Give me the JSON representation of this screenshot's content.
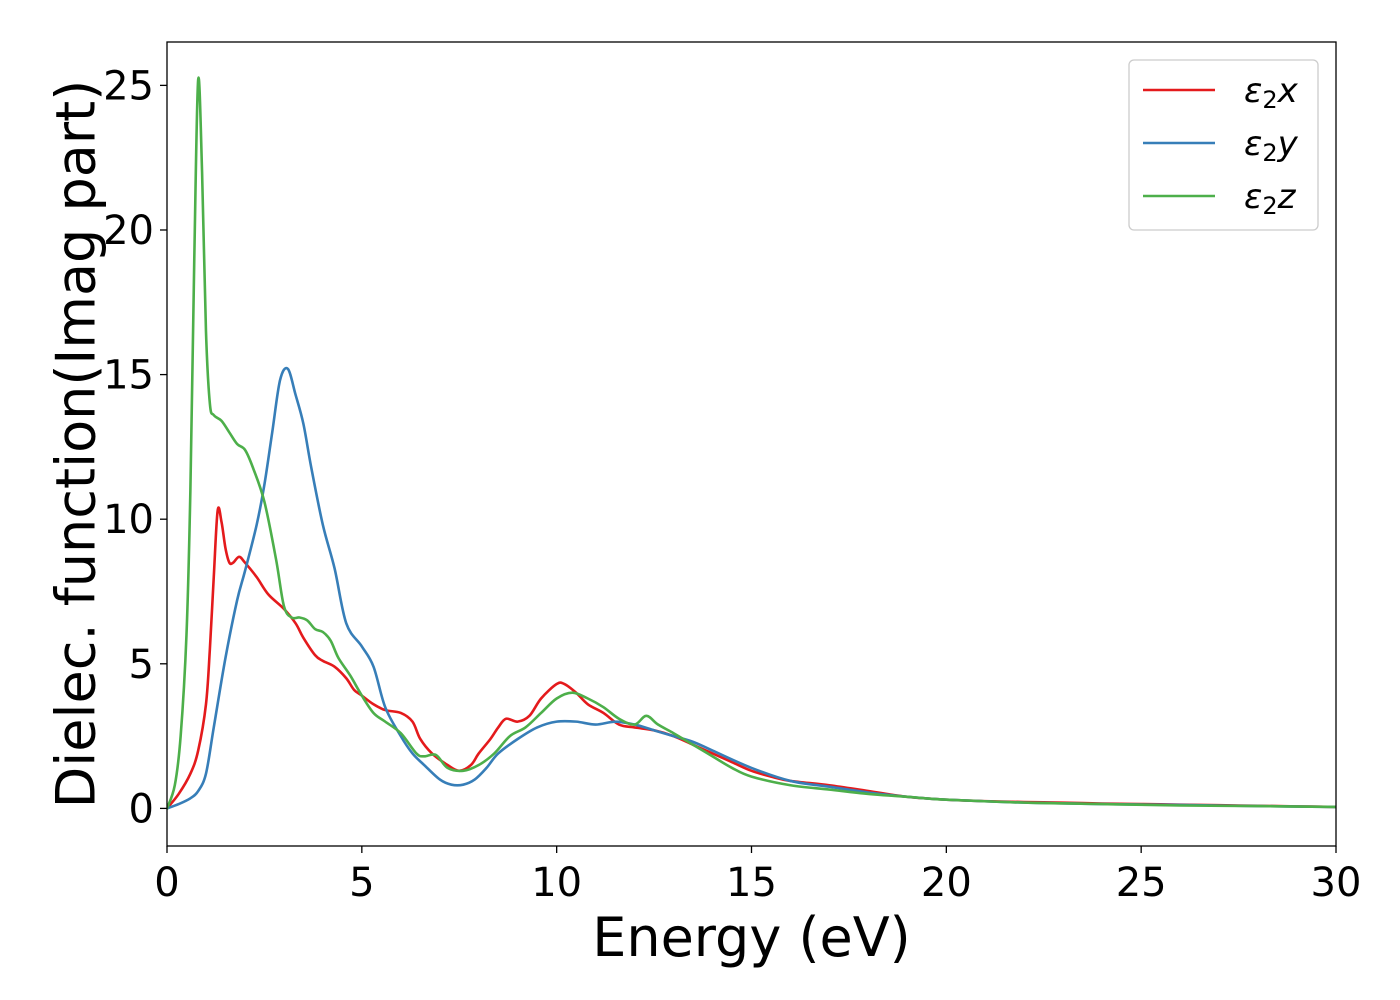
{
  "chart_data": {
    "type": "line",
    "title": "",
    "xlabel": "Energy (eV)",
    "ylabel": "Dielec. function(Imag part)",
    "xlim": [
      0,
      30
    ],
    "ylim": [
      -1.3,
      26.5
    ],
    "xticks": [
      0,
      5,
      10,
      15,
      20,
      25,
      30
    ],
    "yticks": [
      0,
      5,
      10,
      15,
      20,
      25
    ],
    "grid": false,
    "legend_position": "top-right",
    "series": [
      {
        "name": "ε₂x",
        "legend_base": "ε",
        "legend_sub": "2",
        "legend_suffix": "x",
        "color": "#e41a1c",
        "x": [
          0,
          0.3,
          0.6,
          0.8,
          1.0,
          1.1,
          1.2,
          1.3,
          1.4,
          1.5,
          1.6,
          1.7,
          1.85,
          2.0,
          2.3,
          2.6,
          3.0,
          3.3,
          3.5,
          3.8,
          4.0,
          4.3,
          4.6,
          4.8,
          5.0,
          5.3,
          5.6,
          6.0,
          6.3,
          6.5,
          6.8,
          7.2,
          7.5,
          7.8,
          8.0,
          8.3,
          8.5,
          8.7,
          9.0,
          9.3,
          9.6,
          10.0,
          10.2,
          10.5,
          10.8,
          11.2,
          11.6,
          12.0,
          12.5,
          13.0,
          13.5,
          14.0,
          14.5,
          15.0,
          15.5,
          16.0,
          17.0,
          18.0,
          19.0,
          20.0,
          21.0,
          22.0,
          23.0,
          24.0,
          25.0,
          26.0,
          27.0,
          28.0,
          29.0,
          30.0
        ],
        "y": [
          0,
          0.5,
          1.2,
          2.0,
          3.6,
          5.5,
          8.0,
          10.3,
          9.9,
          9.0,
          8.5,
          8.5,
          8.7,
          8.5,
          8.0,
          7.4,
          6.9,
          6.4,
          5.9,
          5.3,
          5.1,
          4.9,
          4.5,
          4.1,
          3.9,
          3.6,
          3.4,
          3.3,
          3.0,
          2.4,
          1.9,
          1.5,
          1.3,
          1.5,
          1.9,
          2.4,
          2.8,
          3.1,
          3.0,
          3.2,
          3.8,
          4.3,
          4.3,
          4.0,
          3.6,
          3.3,
          2.9,
          2.8,
          2.7,
          2.5,
          2.2,
          1.9,
          1.6,
          1.3,
          1.1,
          0.95,
          0.8,
          0.6,
          0.4,
          0.3,
          0.25,
          0.22,
          0.2,
          0.17,
          0.15,
          0.13,
          0.11,
          0.09,
          0.07,
          0.05
        ]
      },
      {
        "name": "ε₂y",
        "legend_base": "ε",
        "legend_sub": "2",
        "legend_suffix": "y",
        "color": "#377eb8",
        "x": [
          0,
          0.3,
          0.6,
          0.8,
          1.0,
          1.2,
          1.5,
          1.8,
          2.0,
          2.3,
          2.5,
          2.7,
          2.9,
          3.1,
          3.3,
          3.5,
          3.7,
          4.0,
          4.3,
          4.6,
          5.0,
          5.3,
          5.6,
          6.0,
          6.3,
          6.6,
          7.0,
          7.3,
          7.6,
          7.9,
          8.2,
          8.5,
          9.0,
          9.5,
          10.0,
          10.5,
          11.0,
          11.5,
          12.0,
          12.5,
          13.0,
          13.5,
          14.0,
          15.0,
          16.0,
          17.0,
          18.0,
          19.0,
          20.0,
          22.0,
          24.0,
          26.0,
          28.0,
          30.0
        ],
        "y": [
          0,
          0.15,
          0.35,
          0.6,
          1.2,
          2.8,
          5.2,
          7.2,
          8.2,
          9.8,
          11.2,
          13.0,
          14.8,
          15.2,
          14.3,
          13.3,
          11.8,
          9.8,
          8.3,
          6.4,
          5.6,
          4.9,
          3.5,
          2.5,
          1.9,
          1.5,
          1.0,
          0.82,
          0.82,
          1.0,
          1.4,
          1.9,
          2.4,
          2.8,
          3.0,
          3.0,
          2.9,
          3.0,
          2.9,
          2.7,
          2.5,
          2.3,
          2.0,
          1.4,
          0.95,
          0.75,
          0.55,
          0.4,
          0.3,
          0.2,
          0.15,
          0.12,
          0.08,
          0.05
        ]
      },
      {
        "name": "ε₂z",
        "legend_base": "ε",
        "legend_sub": "2",
        "legend_suffix": "z",
        "color": "#4daf4a",
        "x": [
          0,
          0.2,
          0.35,
          0.5,
          0.6,
          0.7,
          0.8,
          0.9,
          1.0,
          1.1,
          1.2,
          1.4,
          1.6,
          1.8,
          2.0,
          2.2,
          2.5,
          2.8,
          3.0,
          3.2,
          3.4,
          3.6,
          3.8,
          4.0,
          4.2,
          4.4,
          4.7,
          5.0,
          5.3,
          5.6,
          6.0,
          6.4,
          6.6,
          6.9,
          7.2,
          7.6,
          8.0,
          8.4,
          8.8,
          9.2,
          9.6,
          10.0,
          10.4,
          10.8,
          11.2,
          11.6,
          12.0,
          12.3,
          12.6,
          13.0,
          13.5,
          14.0,
          14.5,
          15.0,
          16.0,
          17.0,
          18.0,
          19.0,
          20.0,
          22.0,
          24.0,
          26.0,
          28.0,
          30.0
        ],
        "y": [
          0,
          0.8,
          2.5,
          6.0,
          11.0,
          19.0,
          25.2,
          22.0,
          16.5,
          14.0,
          13.6,
          13.4,
          13.0,
          12.6,
          12.4,
          11.8,
          10.6,
          8.6,
          7.0,
          6.6,
          6.6,
          6.5,
          6.2,
          6.1,
          5.8,
          5.2,
          4.6,
          3.9,
          3.3,
          3.0,
          2.6,
          1.9,
          1.8,
          1.85,
          1.4,
          1.3,
          1.5,
          1.9,
          2.5,
          2.8,
          3.3,
          3.8,
          4.0,
          3.8,
          3.5,
          3.1,
          2.9,
          3.2,
          2.9,
          2.6,
          2.2,
          1.8,
          1.4,
          1.1,
          0.8,
          0.65,
          0.5,
          0.4,
          0.3,
          0.2,
          0.15,
          0.1,
          0.08,
          0.05
        ]
      }
    ]
  }
}
